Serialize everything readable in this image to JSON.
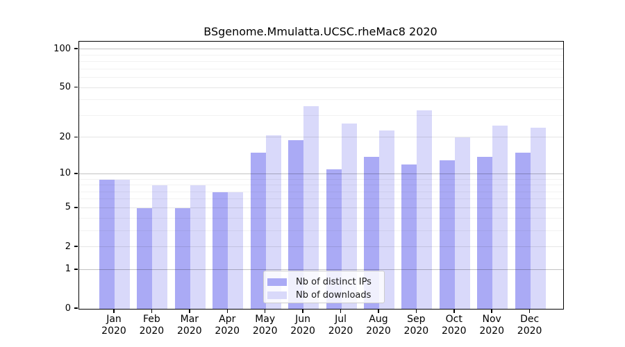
{
  "chart_data": {
    "type": "bar",
    "title": "BSgenome.Mmulatta.UCSC.rheMac8 2020",
    "categories": [
      "Jan 2020",
      "Feb 2020",
      "Mar 2020",
      "Apr 2020",
      "May 2020",
      "Jun 2020",
      "Jul 2020",
      "Aug 2020",
      "Sep 2020",
      "Oct 2020",
      "Nov 2020",
      "Dec 2020"
    ],
    "months": [
      "Jan",
      "Feb",
      "Mar",
      "Apr",
      "May",
      "Jun",
      "Jul",
      "Aug",
      "Sep",
      "Oct",
      "Nov",
      "Dec"
    ],
    "year": "2020",
    "series": [
      {
        "name": "Nb of distinct IPs",
        "color": "#aaaaf5",
        "values": [
          9,
          5,
          5,
          7,
          15,
          19,
          11,
          14,
          12,
          13,
          14,
          15
        ]
      },
      {
        "name": "Nb of downloads",
        "color": "#d9d9fa",
        "values": [
          9,
          8,
          8,
          7,
          21,
          36,
          26,
          23,
          33,
          20,
          25,
          24
        ]
      }
    ],
    "y_axis": {
      "scale": "log1p",
      "tick_values": [
        100,
        50,
        20,
        10,
        5,
        2,
        1,
        0
      ],
      "tick_labels": [
        "100",
        "50",
        "20",
        "10",
        "5",
        "2",
        "1",
        "0"
      ],
      "max": 115,
      "major_gridlines": [
        1,
        10,
        100
      ],
      "mid_gridlines": [
        2,
        5,
        20,
        50
      ],
      "minor_gridlines": [
        3,
        4,
        6,
        7,
        8,
        9,
        30,
        40,
        60,
        70,
        80,
        90
      ]
    },
    "grid": true,
    "legend_position": "inside-bottom-center",
    "background_color": "#ffffff"
  }
}
